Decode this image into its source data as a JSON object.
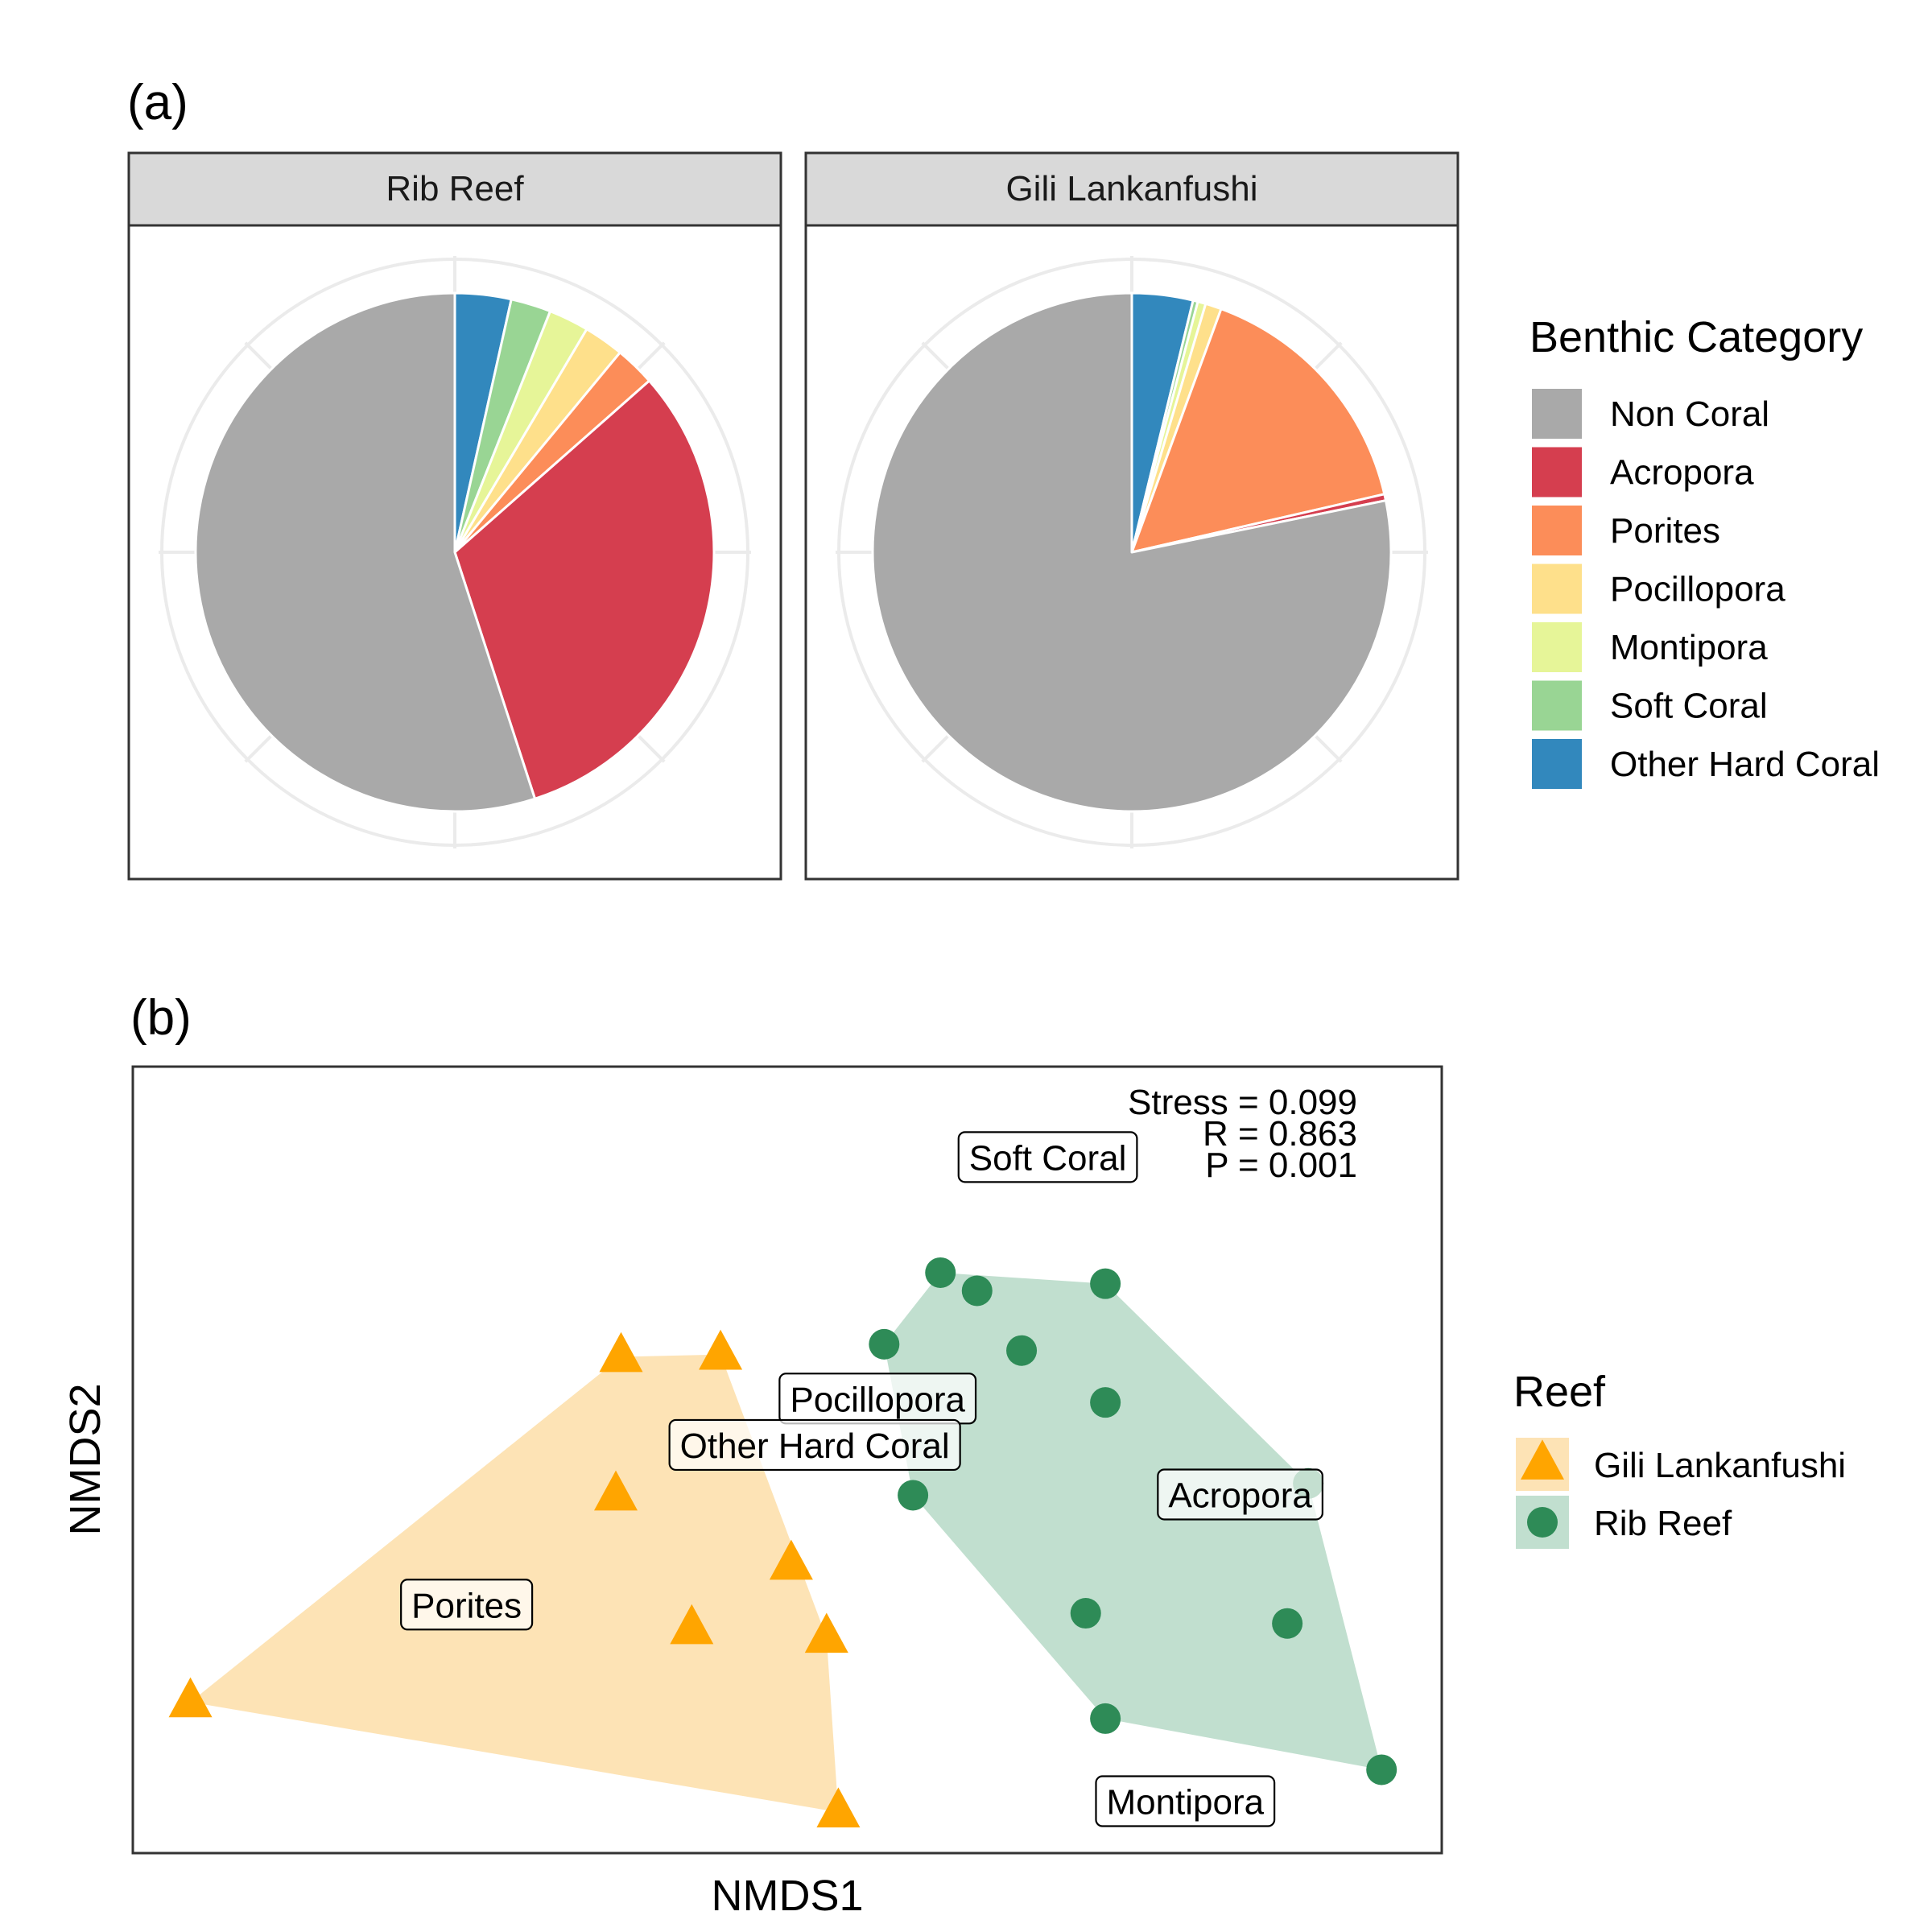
{
  "panel_labels": {
    "a": "(a)",
    "b": "(b)"
  },
  "chart_data": [
    {
      "type": "pie",
      "facets": [
        {
          "title": "Rib Reef",
          "slices": [
            {
              "category": "Other Hard Coral",
              "value": 3.5
            },
            {
              "category": "Soft Coral",
              "value": 2.5
            },
            {
              "category": "Montipora",
              "value": 2.5
            },
            {
              "category": "Pocillopora",
              "value": 2.5
            },
            {
              "category": "Porites",
              "value": 2.5
            },
            {
              "category": "Acropora",
              "value": 31.5
            },
            {
              "category": "Non Coral",
              "value": 55.0
            }
          ]
        },
        {
          "title": "Gili Lankanfushi",
          "slices": [
            {
              "category": "Other Hard Coral",
              "value": 3.8
            },
            {
              "category": "Soft Coral",
              "value": 0.3
            },
            {
              "category": "Montipora",
              "value": 0.5
            },
            {
              "category": "Pocillopora",
              "value": 1.0
            },
            {
              "category": "Porites",
              "value": 15.8
            },
            {
              "category": "Acropora",
              "value": 0.4
            },
            {
              "category": "Non Coral",
              "value": 78.2
            }
          ]
        }
      ],
      "legend": {
        "title": "Benthic Category",
        "position": "right",
        "entries": [
          {
            "label": "Non Coral",
            "color": "#A9A9A9"
          },
          {
            "label": "Acropora",
            "color": "#D53E4F"
          },
          {
            "label": "Porites",
            "color": "#FC8D59"
          },
          {
            "label": "Pocillopora",
            "color": "#FEE08B"
          },
          {
            "label": "Montipora",
            "color": "#E6F598"
          },
          {
            "label": "Soft Coral",
            "color": "#99D594"
          },
          {
            "label": "Other Hard Coral",
            "color": "#3288BD"
          }
        ]
      }
    },
    {
      "type": "scatter",
      "xlabel": "NMDS1",
      "ylabel": "NMDS2",
      "xlim": [
        0,
        100
      ],
      "ylim": [
        0,
        100
      ],
      "stats": [
        "Stress = 0.099",
        "R = 0.863",
        "P = 0.001"
      ],
      "series": [
        {
          "name": "Gili Lankanfushi",
          "marker": "triangle",
          "color": "#FFA500",
          "fill": "#FDE3B5",
          "points": [
            {
              "x": 4.4,
              "y": 19.2
            },
            {
              "x": 37.3,
              "y": 63.1
            },
            {
              "x": 44.9,
              "y": 63.4
            },
            {
              "x": 36.9,
              "y": 45.5
            },
            {
              "x": 50.3,
              "y": 36.7
            },
            {
              "x": 42.7,
              "y": 28.5
            },
            {
              "x": 53.0,
              "y": 27.4
            },
            {
              "x": 53.9,
              "y": 5.2
            }
          ],
          "hull_order": [
            0,
            1,
            2,
            6,
            7
          ]
        },
        {
          "name": "Rib Reef",
          "marker": "circle",
          "color": "#2E8B57",
          "fill": "#C1DFCF",
          "points": [
            {
              "x": 61.7,
              "y": 73.8
            },
            {
              "x": 64.5,
              "y": 71.5
            },
            {
              "x": 74.3,
              "y": 72.4
            },
            {
              "x": 57.4,
              "y": 64.7
            },
            {
              "x": 67.9,
              "y": 63.9
            },
            {
              "x": 74.3,
              "y": 57.3
            },
            {
              "x": 59.6,
              "y": 45.5
            },
            {
              "x": 89.8,
              "y": 47.0
            },
            {
              "x": 72.8,
              "y": 30.5
            },
            {
              "x": 88.2,
              "y": 29.2
            },
            {
              "x": 74.3,
              "y": 17.1
            },
            {
              "x": 95.4,
              "y": 10.6
            }
          ],
          "hull_order": [
            0,
            2,
            7,
            11,
            10,
            6,
            3
          ]
        }
      ],
      "annotations": [
        {
          "label": "Soft Coral",
          "x": 69.9,
          "y": 88.5
        },
        {
          "label": "Pocillopora",
          "x": 56.9,
          "y": 57.8
        },
        {
          "label": "Other Hard Coral",
          "x": 52.1,
          "y": 51.9
        },
        {
          "label": "Acropora",
          "x": 84.6,
          "y": 45.6
        },
        {
          "label": "Porites",
          "x": 25.5,
          "y": 31.6
        },
        {
          "label": "Montipora",
          "x": 80.4,
          "y": 6.6
        }
      ],
      "legend": {
        "title": "Reef",
        "position": "right",
        "entries": [
          {
            "label": "Gili Lankanfushi",
            "color": "#FFA500",
            "fill": "#FDE3B5",
            "marker": "triangle"
          },
          {
            "label": "Rib Reef",
            "color": "#2E8B57",
            "fill": "#C1DFCF",
            "marker": "circle"
          }
        ]
      }
    }
  ]
}
